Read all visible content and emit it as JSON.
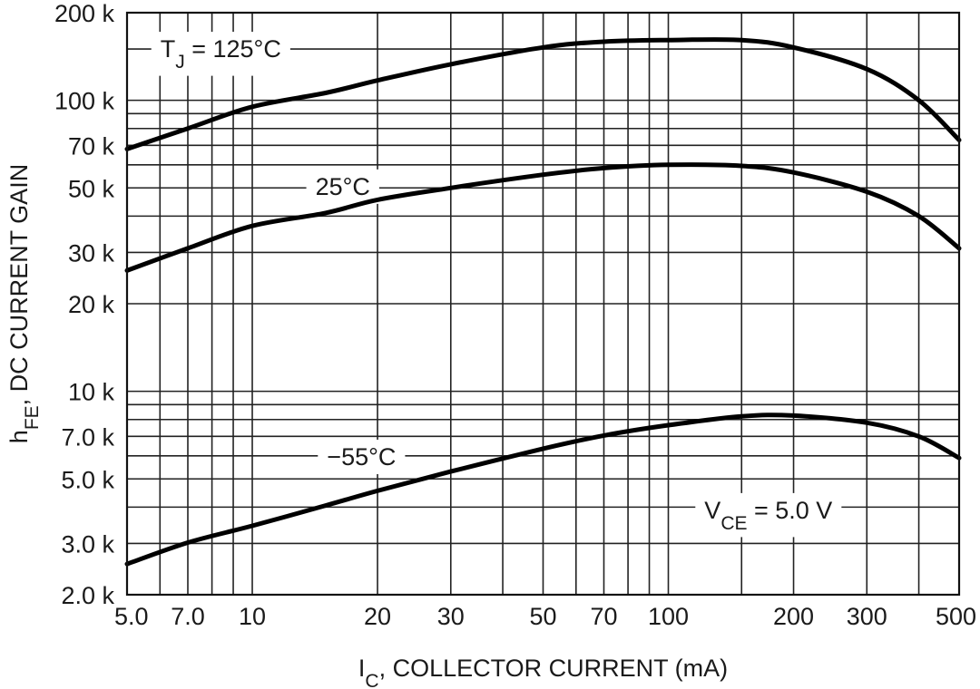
{
  "chart_data": {
    "type": "line",
    "x_scale": "log",
    "y_scale": "log",
    "xlim": [
      5,
      500
    ],
    "ylim": [
      2000,
      200000
    ],
    "grid": true,
    "xlabel": {
      "main": "I",
      "sub": "C",
      "rest": ", COLLECTOR CURRENT (mA)"
    },
    "ylabel": {
      "main": "h",
      "sub": "FE",
      "rest": ", DC CURRENT GAIN"
    },
    "x_ticks": [
      {
        "value": 5,
        "label": "5.0"
      },
      {
        "value": 7,
        "label": "7.0"
      },
      {
        "value": 10,
        "label": "10"
      },
      {
        "value": 20,
        "label": "20"
      },
      {
        "value": 30,
        "label": "30"
      },
      {
        "value": 50,
        "label": "50"
      },
      {
        "value": 70,
        "label": "70"
      },
      {
        "value": 100,
        "label": "100"
      },
      {
        "value": 200,
        "label": "200"
      },
      {
        "value": 300,
        "label": "300"
      },
      {
        "value": 500,
        "label": "500"
      }
    ],
    "x_minor_grid": [
      6,
      8,
      9,
      40,
      60,
      80,
      90,
      150,
      400
    ],
    "y_ticks": [
      {
        "value": 2000,
        "label": "2.0 k"
      },
      {
        "value": 3000,
        "label": "3.0 k"
      },
      {
        "value": 5000,
        "label": "5.0 k"
      },
      {
        "value": 7000,
        "label": "7.0 k"
      },
      {
        "value": 10000,
        "label": "10 k"
      },
      {
        "value": 20000,
        "label": "20 k"
      },
      {
        "value": 30000,
        "label": "30 k"
      },
      {
        "value": 50000,
        "label": "50 k"
      },
      {
        "value": 70000,
        "label": "70 k"
      },
      {
        "value": 100000,
        "label": "100 k"
      },
      {
        "value": 200000,
        "label": "200 k"
      }
    ],
    "y_minor_grid": [
      4000,
      6000,
      8000,
      9000,
      40000,
      60000,
      80000,
      90000,
      150000
    ],
    "series": [
      {
        "label": {
          "main": "T",
          "sub": "J",
          "rest": " = 125°C"
        },
        "label_at": {
          "x": 8.4,
          "y": 150000
        },
        "points": [
          [
            5,
            68000
          ],
          [
            7,
            80000
          ],
          [
            10,
            95000
          ],
          [
            15,
            106000
          ],
          [
            20,
            117000
          ],
          [
            30,
            133000
          ],
          [
            50,
            152000
          ],
          [
            70,
            159000
          ],
          [
            100,
            161000
          ],
          [
            150,
            161000
          ],
          [
            200,
            152000
          ],
          [
            300,
            128000
          ],
          [
            400,
            100000
          ],
          [
            500,
            73000
          ]
        ]
      },
      {
        "label": {
          "main": "25°C",
          "sub": "",
          "rest": ""
        },
        "label_at": {
          "x": 16.5,
          "y": 50500
        },
        "points": [
          [
            5,
            26000
          ],
          [
            7,
            31000
          ],
          [
            10,
            37000
          ],
          [
            15,
            41000
          ],
          [
            20,
            45500
          ],
          [
            30,
            50000
          ],
          [
            50,
            55500
          ],
          [
            70,
            58500
          ],
          [
            100,
            60000
          ],
          [
            150,
            59500
          ],
          [
            200,
            56500
          ],
          [
            300,
            48500
          ],
          [
            400,
            40000
          ],
          [
            500,
            31000
          ]
        ]
      },
      {
        "label": {
          "main": "−55°C",
          "sub": "",
          "rest": ""
        },
        "label_at": {
          "x": 18.3,
          "y": 5950
        },
        "points": [
          [
            5,
            2550
          ],
          [
            7,
            3020
          ],
          [
            10,
            3450
          ],
          [
            15,
            4050
          ],
          [
            20,
            4550
          ],
          [
            30,
            5300
          ],
          [
            50,
            6350
          ],
          [
            70,
            7050
          ],
          [
            100,
            7650
          ],
          [
            150,
            8200
          ],
          [
            200,
            8250
          ],
          [
            300,
            7800
          ],
          [
            400,
            7000
          ],
          [
            500,
            5900
          ]
        ]
      }
    ],
    "annotation": {
      "main": "V",
      "sub": "CE",
      "rest": " = 5.0 V",
      "at": {
        "x": 174,
        "y": 3900
      }
    }
  }
}
